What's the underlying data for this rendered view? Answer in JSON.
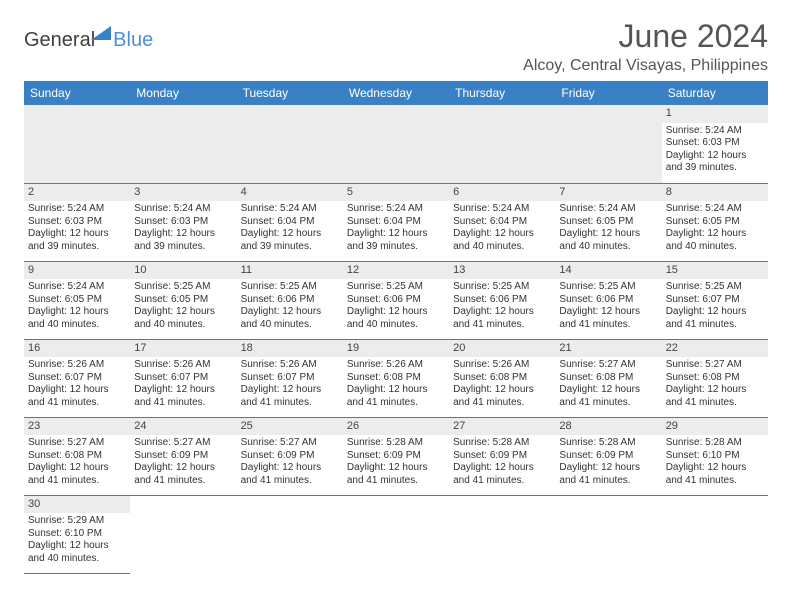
{
  "logo": {
    "text1": "General",
    "text2": "Blue",
    "triangle_color": "#3a80c4"
  },
  "title": "June 2024",
  "location": "Alcoy, Central Visayas, Philippines",
  "colors": {
    "header_bg": "#3a80c4",
    "header_text": "#ffffff",
    "daynum_bg": "#ececec",
    "border": "#3a80c4"
  },
  "day_headers": [
    "Sunday",
    "Monday",
    "Tuesday",
    "Wednesday",
    "Thursday",
    "Friday",
    "Saturday"
  ],
  "weeks": [
    [
      null,
      null,
      null,
      null,
      null,
      null,
      {
        "day": "1",
        "sunrise": "Sunrise: 5:24 AM",
        "sunset": "Sunset: 6:03 PM",
        "daylight1": "Daylight: 12 hours",
        "daylight2": "and 39 minutes."
      }
    ],
    [
      {
        "day": "2",
        "sunrise": "Sunrise: 5:24 AM",
        "sunset": "Sunset: 6:03 PM",
        "daylight1": "Daylight: 12 hours",
        "daylight2": "and 39 minutes."
      },
      {
        "day": "3",
        "sunrise": "Sunrise: 5:24 AM",
        "sunset": "Sunset: 6:03 PM",
        "daylight1": "Daylight: 12 hours",
        "daylight2": "and 39 minutes."
      },
      {
        "day": "4",
        "sunrise": "Sunrise: 5:24 AM",
        "sunset": "Sunset: 6:04 PM",
        "daylight1": "Daylight: 12 hours",
        "daylight2": "and 39 minutes."
      },
      {
        "day": "5",
        "sunrise": "Sunrise: 5:24 AM",
        "sunset": "Sunset: 6:04 PM",
        "daylight1": "Daylight: 12 hours",
        "daylight2": "and 39 minutes."
      },
      {
        "day": "6",
        "sunrise": "Sunrise: 5:24 AM",
        "sunset": "Sunset: 6:04 PM",
        "daylight1": "Daylight: 12 hours",
        "daylight2": "and 40 minutes."
      },
      {
        "day": "7",
        "sunrise": "Sunrise: 5:24 AM",
        "sunset": "Sunset: 6:05 PM",
        "daylight1": "Daylight: 12 hours",
        "daylight2": "and 40 minutes."
      },
      {
        "day": "8",
        "sunrise": "Sunrise: 5:24 AM",
        "sunset": "Sunset: 6:05 PM",
        "daylight1": "Daylight: 12 hours",
        "daylight2": "and 40 minutes."
      }
    ],
    [
      {
        "day": "9",
        "sunrise": "Sunrise: 5:24 AM",
        "sunset": "Sunset: 6:05 PM",
        "daylight1": "Daylight: 12 hours",
        "daylight2": "and 40 minutes."
      },
      {
        "day": "10",
        "sunrise": "Sunrise: 5:25 AM",
        "sunset": "Sunset: 6:05 PM",
        "daylight1": "Daylight: 12 hours",
        "daylight2": "and 40 minutes."
      },
      {
        "day": "11",
        "sunrise": "Sunrise: 5:25 AM",
        "sunset": "Sunset: 6:06 PM",
        "daylight1": "Daylight: 12 hours",
        "daylight2": "and 40 minutes."
      },
      {
        "day": "12",
        "sunrise": "Sunrise: 5:25 AM",
        "sunset": "Sunset: 6:06 PM",
        "daylight1": "Daylight: 12 hours",
        "daylight2": "and 40 minutes."
      },
      {
        "day": "13",
        "sunrise": "Sunrise: 5:25 AM",
        "sunset": "Sunset: 6:06 PM",
        "daylight1": "Daylight: 12 hours",
        "daylight2": "and 41 minutes."
      },
      {
        "day": "14",
        "sunrise": "Sunrise: 5:25 AM",
        "sunset": "Sunset: 6:06 PM",
        "daylight1": "Daylight: 12 hours",
        "daylight2": "and 41 minutes."
      },
      {
        "day": "15",
        "sunrise": "Sunrise: 5:25 AM",
        "sunset": "Sunset: 6:07 PM",
        "daylight1": "Daylight: 12 hours",
        "daylight2": "and 41 minutes."
      }
    ],
    [
      {
        "day": "16",
        "sunrise": "Sunrise: 5:26 AM",
        "sunset": "Sunset: 6:07 PM",
        "daylight1": "Daylight: 12 hours",
        "daylight2": "and 41 minutes."
      },
      {
        "day": "17",
        "sunrise": "Sunrise: 5:26 AM",
        "sunset": "Sunset: 6:07 PM",
        "daylight1": "Daylight: 12 hours",
        "daylight2": "and 41 minutes."
      },
      {
        "day": "18",
        "sunrise": "Sunrise: 5:26 AM",
        "sunset": "Sunset: 6:07 PM",
        "daylight1": "Daylight: 12 hours",
        "daylight2": "and 41 minutes."
      },
      {
        "day": "19",
        "sunrise": "Sunrise: 5:26 AM",
        "sunset": "Sunset: 6:08 PM",
        "daylight1": "Daylight: 12 hours",
        "daylight2": "and 41 minutes."
      },
      {
        "day": "20",
        "sunrise": "Sunrise: 5:26 AM",
        "sunset": "Sunset: 6:08 PM",
        "daylight1": "Daylight: 12 hours",
        "daylight2": "and 41 minutes."
      },
      {
        "day": "21",
        "sunrise": "Sunrise: 5:27 AM",
        "sunset": "Sunset: 6:08 PM",
        "daylight1": "Daylight: 12 hours",
        "daylight2": "and 41 minutes."
      },
      {
        "day": "22",
        "sunrise": "Sunrise: 5:27 AM",
        "sunset": "Sunset: 6:08 PM",
        "daylight1": "Daylight: 12 hours",
        "daylight2": "and 41 minutes."
      }
    ],
    [
      {
        "day": "23",
        "sunrise": "Sunrise: 5:27 AM",
        "sunset": "Sunset: 6:08 PM",
        "daylight1": "Daylight: 12 hours",
        "daylight2": "and 41 minutes."
      },
      {
        "day": "24",
        "sunrise": "Sunrise: 5:27 AM",
        "sunset": "Sunset: 6:09 PM",
        "daylight1": "Daylight: 12 hours",
        "daylight2": "and 41 minutes."
      },
      {
        "day": "25",
        "sunrise": "Sunrise: 5:27 AM",
        "sunset": "Sunset: 6:09 PM",
        "daylight1": "Daylight: 12 hours",
        "daylight2": "and 41 minutes."
      },
      {
        "day": "26",
        "sunrise": "Sunrise: 5:28 AM",
        "sunset": "Sunset: 6:09 PM",
        "daylight1": "Daylight: 12 hours",
        "daylight2": "and 41 minutes."
      },
      {
        "day": "27",
        "sunrise": "Sunrise: 5:28 AM",
        "sunset": "Sunset: 6:09 PM",
        "daylight1": "Daylight: 12 hours",
        "daylight2": "and 41 minutes."
      },
      {
        "day": "28",
        "sunrise": "Sunrise: 5:28 AM",
        "sunset": "Sunset: 6:09 PM",
        "daylight1": "Daylight: 12 hours",
        "daylight2": "and 41 minutes."
      },
      {
        "day": "29",
        "sunrise": "Sunrise: 5:28 AM",
        "sunset": "Sunset: 6:10 PM",
        "daylight1": "Daylight: 12 hours",
        "daylight2": "and 41 minutes."
      }
    ],
    [
      {
        "day": "30",
        "sunrise": "Sunrise: 5:29 AM",
        "sunset": "Sunset: 6:10 PM",
        "daylight1": "Daylight: 12 hours",
        "daylight2": "and 40 minutes."
      },
      null,
      null,
      null,
      null,
      null,
      null
    ]
  ]
}
